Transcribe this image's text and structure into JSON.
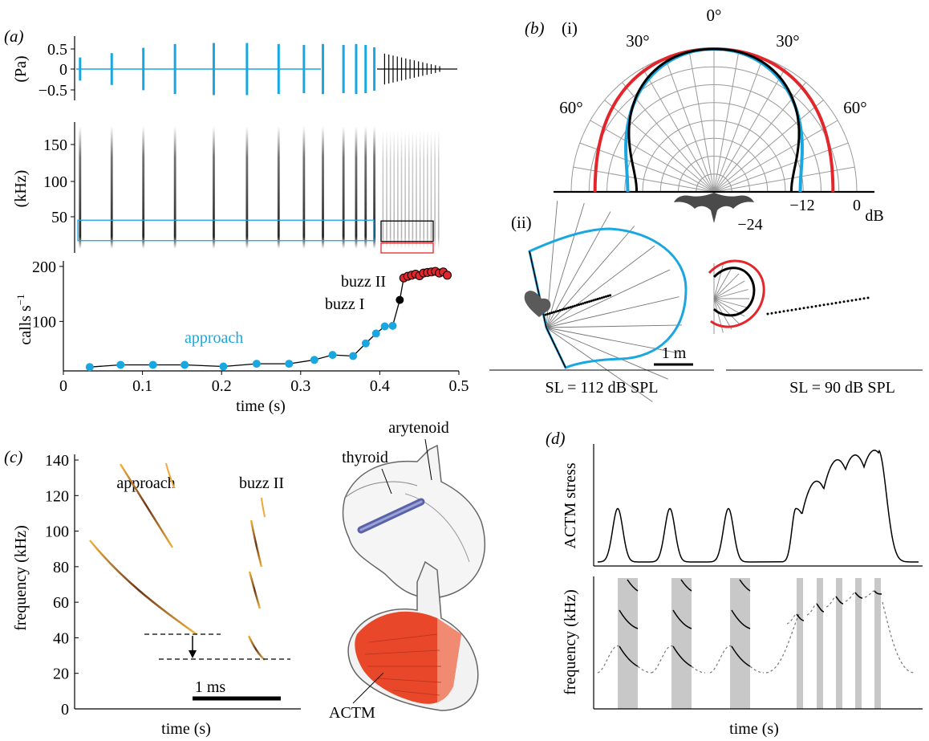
{
  "panel_letters": {
    "a": "(a)",
    "b": "(b)",
    "c": "(c)",
    "d": "(d)",
    "b_i": "(i)",
    "b_ii": "(ii)"
  },
  "colors": {
    "approach": "#1aa7e0",
    "buzz_I": "#000000",
    "buzz_II": "#e3262b",
    "muscle": "#e8472a",
    "ligament": "#5a63a8",
    "shade": "#c8c8c8"
  },
  "chart_data": [
    {
      "id": "a-waveform",
      "type": "line",
      "ylabel": "(Pa)",
      "ylim": [
        -0.6,
        0.6
      ],
      "yticks": [
        "0.5",
        "0",
        "−0.5"
      ],
      "approach_call_times": [
        0.013,
        0.053,
        0.093,
        0.133,
        0.182,
        0.224,
        0.264,
        0.296,
        0.32,
        0.346,
        0.362,
        0.374,
        0.385
      ],
      "buzz_start": 0.4,
      "buzz_end": 0.475
    },
    {
      "id": "a-spectrogram",
      "type": "heatmap",
      "ylabel": "(kHz)",
      "ylim": [
        25,
        185
      ],
      "yticks": [
        "150",
        "100",
        "50"
      ],
      "boxes": [
        {
          "series": "approach",
          "t": [
            0.01,
            0.396
          ],
          "f": [
            40,
            65
          ]
        },
        {
          "series": "buzz I",
          "t": [
            0.4,
            0.475
          ],
          "f": [
            39,
            64
          ]
        },
        {
          "series": "buzz II",
          "t": [
            0.4,
            0.475
          ],
          "f": [
            25,
            37
          ]
        }
      ]
    },
    {
      "id": "a-rate",
      "type": "scatter",
      "xlabel": "time (s)",
      "ylabel": "calls s",
      "ylabel_sup": "−1",
      "xlim": [
        0,
        0.5
      ],
      "ylim": [
        10,
        210
      ],
      "xticks": [
        "0",
        "0.1",
        "0.2",
        "0.3",
        "0.4",
        "0.5"
      ],
      "yticks": [
        "200",
        "100"
      ],
      "series": [
        {
          "name": "approach",
          "x": [
            0.013,
            0.052,
            0.093,
            0.133,
            0.182,
            0.224,
            0.265,
            0.297,
            0.32,
            0.346,
            0.362,
            0.375,
            0.386,
            0.396
          ],
          "y": [
            17,
            21,
            21,
            21,
            18,
            23,
            23,
            30,
            39,
            37,
            60,
            78,
            91,
            92
          ]
        },
        {
          "name": "buzz I",
          "x": [
            0.405
          ],
          "y": [
            139
          ]
        },
        {
          "name": "buzz II",
          "x": [
            0.41,
            0.415,
            0.42,
            0.425,
            0.43,
            0.435,
            0.44,
            0.445,
            0.45,
            0.455,
            0.46,
            0.465
          ],
          "y": [
            179,
            182,
            184,
            186,
            183,
            188,
            189,
            190,
            191,
            188,
            190,
            184
          ]
        }
      ],
      "labels": {
        "approach": "approach",
        "buzz_I": "buzz I",
        "buzz_II": "buzz II"
      }
    },
    {
      "id": "b-i-polar",
      "type": "line",
      "angle_labels": [
        "0°",
        "30°",
        "30°",
        "60°",
        "60°"
      ],
      "db_labels": [
        "−24",
        "−12",
        "0",
        "dB"
      ],
      "rlim_db": [
        -24,
        0
      ],
      "series": [
        {
          "name": "approach",
          "db_at_90deg": -9.5
        },
        {
          "name": "buzz I",
          "db_at_90deg": -11
        },
        {
          "name": "buzz II",
          "db_at_90deg": -4
        }
      ]
    },
    {
      "id": "b-ii-beams",
      "type": "line",
      "scale_label": "1 m",
      "left_caption": "SL = 112 dB SPL",
      "right_caption": "SL = 90 dB SPL"
    },
    {
      "id": "c-spectrogram",
      "type": "line",
      "xlabel": "time (s)",
      "ylabel": "frequency (kHz)",
      "ylim": [
        0,
        145
      ],
      "yticks": [
        "140",
        "120",
        "100",
        "80",
        "60",
        "40",
        "20",
        "0"
      ],
      "scale_label": "1 ms",
      "labels": {
        "approach": "approach",
        "buzz_II": "buzz II"
      },
      "approach_min_khz": 42,
      "buzz_II_min_khz": 28
    },
    {
      "id": "d-stress",
      "type": "line",
      "ylabel": "ACTM stress",
      "peaks": [
        0.45,
        0.45,
        0.45,
        0.45,
        0.7,
        0.9,
        0.95,
        0.97
      ]
    },
    {
      "id": "d-frequency",
      "type": "line",
      "ylabel": "frequency (kHz)",
      "xlabel": "time (s)"
    }
  ],
  "anatomy": {
    "thyroid": "thyroid",
    "arytenoid": "arytenoid",
    "actm": "ACTM"
  }
}
